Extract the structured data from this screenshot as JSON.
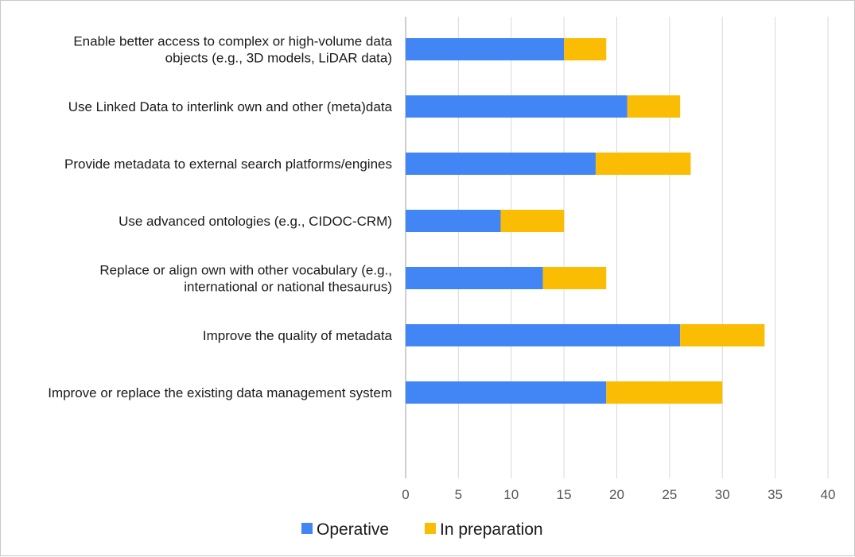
{
  "chart_data": {
    "type": "bar",
    "orientation": "horizontal",
    "stacked": true,
    "categories": [
      [
        "Enable better access to complex or high-volume data",
        "objects (e.g., 3D models, LiDAR data)"
      ],
      [
        "Use Linked Data to interlink own and other (meta)data"
      ],
      [
        "Provide metadata to external search platforms/engines"
      ],
      [
        "Use advanced ontologies (e.g., CIDOC-CRM)"
      ],
      [
        "Replace or align own with other vocabulary (e.g.,",
        "international or national thesaurus)"
      ],
      [
        "Improve the quality of metadata"
      ],
      [
        "Improve or replace the existing data management system"
      ]
    ],
    "series": [
      {
        "name": "Operative",
        "color": "#4285f4",
        "values": [
          15,
          21,
          18,
          9,
          13,
          26,
          19
        ]
      },
      {
        "name": "In preparation",
        "color": "#fbbc04",
        "values": [
          4,
          5,
          9,
          6,
          6,
          8,
          11
        ]
      }
    ],
    "xlim": [
      0,
      40
    ],
    "xticks": [
      "0",
      "5",
      "10",
      "15",
      "20",
      "25",
      "30",
      "35",
      "40"
    ],
    "grid": true,
    "legend_position": "bottom"
  }
}
